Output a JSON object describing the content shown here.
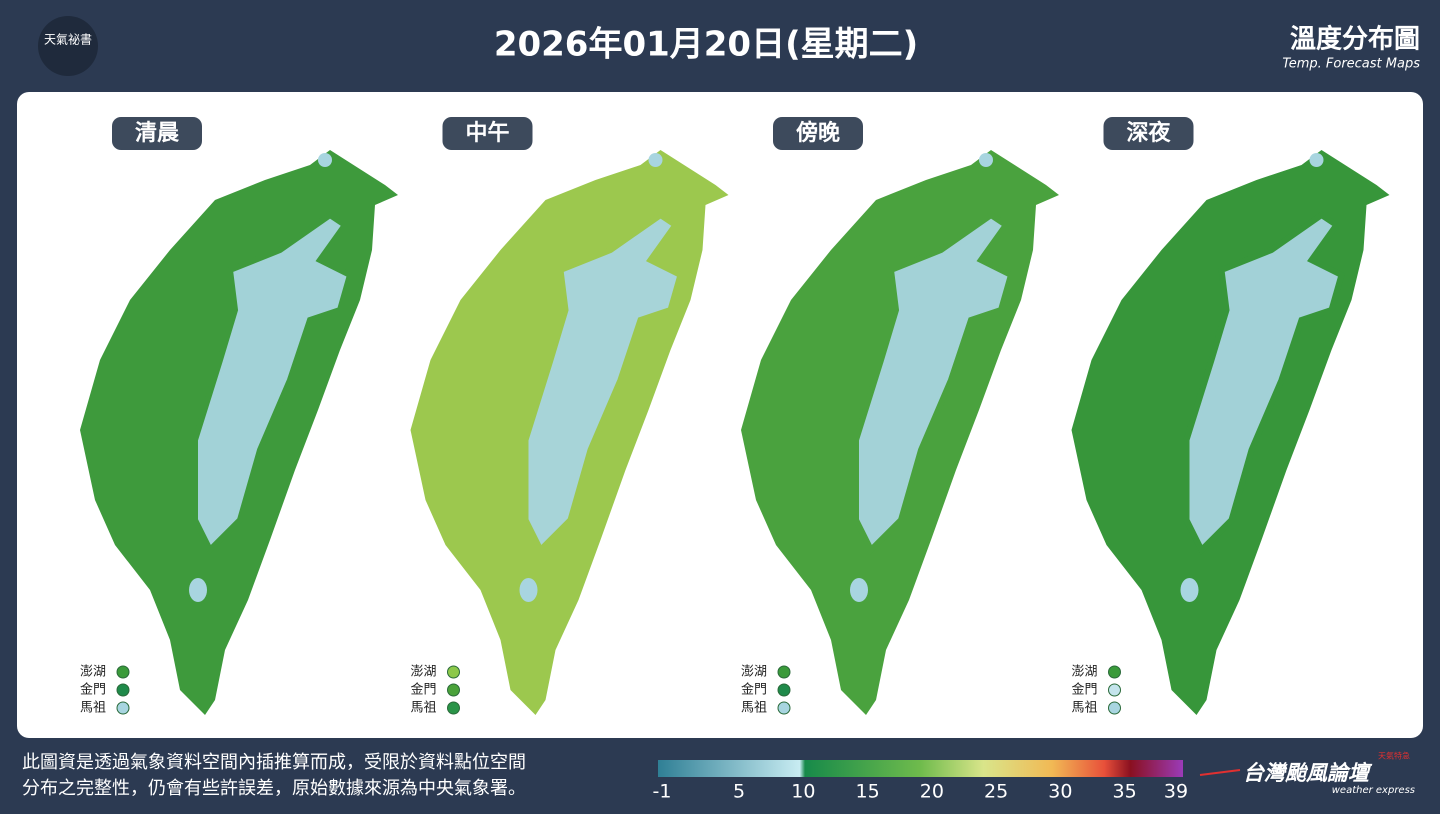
{
  "header": {
    "logo": "天氣祕書",
    "title": "2026年01月20日(星期二)",
    "map_title": "溫度分布圖",
    "map_subtitle": "Temp. Forecast Maps"
  },
  "panels": [
    {
      "label": "清晨",
      "land": "#3e9a3c",
      "cold": "#a8d5e0",
      "islands": [
        {
          "name": "澎湖",
          "color": "#3a9a3a"
        },
        {
          "name": "金門",
          "color": "#1f8a4a"
        },
        {
          "name": "馬祖",
          "color": "#a8d5e0"
        }
      ]
    },
    {
      "label": "中午",
      "land": "#9cc84e",
      "cold": "#a8d5e0",
      "islands": [
        {
          "name": "澎湖",
          "color": "#8cc84a"
        },
        {
          "name": "金門",
          "color": "#4aa23a"
        },
        {
          "name": "馬祖",
          "color": "#2a9448"
        }
      ]
    },
    {
      "label": "傍晚",
      "land": "#4aa23e",
      "cold": "#a8d5e0",
      "islands": [
        {
          "name": "澎湖",
          "color": "#3a9a3a"
        },
        {
          "name": "金門",
          "color": "#1f8a4a"
        },
        {
          "name": "馬祖",
          "color": "#a8d5e0"
        }
      ]
    },
    {
      "label": "深夜",
      "land": "#37963a",
      "cold": "#a8d5e0",
      "islands": [
        {
          "name": "澎湖",
          "color": "#3a9a3a"
        },
        {
          "name": "金門",
          "color": "#c4e4ec"
        },
        {
          "name": "馬祖",
          "color": "#a8d5e0"
        }
      ]
    }
  ],
  "footer": {
    "note": [
      "此圖資是透過氣象資料空間內插推算而成，受限於資料點位空間",
      "分布之完整性，仍會有些許誤差，原始數據來源為中央氣象署。"
    ],
    "colorbar_ticks": [
      -1,
      5,
      10,
      15,
      20,
      25,
      30,
      35,
      39
    ],
    "brand_tag": "天氣特急",
    "brand": "台灣颱風論壇",
    "brand_sub": "weather express"
  }
}
